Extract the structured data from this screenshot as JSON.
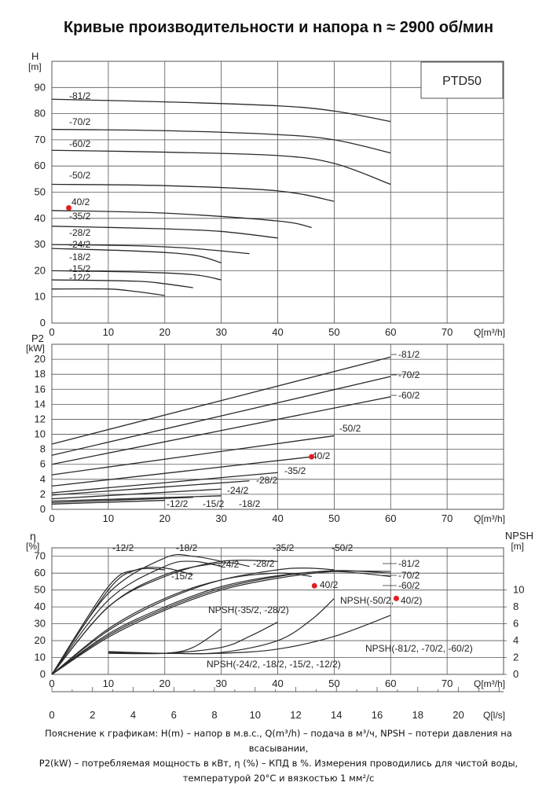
{
  "title": "Кривые производительности и напора n ≈ 2900 об/мин",
  "note": {
    "line1": "Пояснение к графикам: H(m) – напор в м.в.с., Q(m³/h) – подача в м³/ч, NPSH – потери давления на всасывании,",
    "line2": "P2(kW) – потребляемая мощность в кВт, η (%) – КПД в %. Измерения проводились для чистой воды,",
    "line3": "температурой 20°C и вязкостью 1 мм²/с"
  },
  "colors": {
    "line": "#2a2a2a",
    "grid": "#555555",
    "highlight": "#e02020"
  },
  "chart_data": [
    {
      "type": "line",
      "label_box": "PTD50",
      "ylabel": "H",
      "yunit": "[m]",
      "xlabel": "Q[m³/h]",
      "xlim": [
        0,
        80
      ],
      "ylim": [
        0,
        100
      ],
      "xticks": [
        0,
        10,
        20,
        30,
        40,
        50,
        60,
        70
      ],
      "yticks": [
        0,
        10,
        20,
        30,
        40,
        50,
        60,
        70,
        80,
        90
      ],
      "series": [
        {
          "name": "-81/2",
          "x": [
            0,
            20,
            40,
            50,
            60
          ],
          "y": [
            85.5,
            84.5,
            83,
            81,
            77
          ]
        },
        {
          "name": "-70/2",
          "x": [
            0,
            20,
            40,
            50,
            60
          ],
          "y": [
            74,
            73.5,
            72,
            70,
            65
          ]
        },
        {
          "name": "-60/2",
          "x": [
            0,
            20,
            40,
            50,
            60
          ],
          "y": [
            66,
            65.3,
            64,
            61,
            53
          ]
        },
        {
          "name": "-50/2",
          "x": [
            0,
            20,
            40,
            50
          ],
          "y": [
            53,
            52.5,
            50.5,
            46.5
          ]
        },
        {
          "name": "-40/2",
          "x": [
            0,
            20,
            40,
            46
          ],
          "y": [
            43,
            42,
            39,
            36.5
          ]
        },
        {
          "name": "-35/2",
          "x": [
            0,
            20,
            30,
            40
          ],
          "y": [
            37,
            36,
            35,
            32.5
          ]
        },
        {
          "name": "-28/2",
          "x": [
            0,
            15,
            25,
            35
          ],
          "y": [
            30,
            29.5,
            28.5,
            26.5
          ]
        },
        {
          "name": "-24/2",
          "x": [
            0,
            15,
            25,
            30
          ],
          "y": [
            28.5,
            27.5,
            26,
            23
          ]
        },
        {
          "name": "-18/2",
          "x": [
            0,
            15,
            25,
            30
          ],
          "y": [
            20,
            19.5,
            18.5,
            16.5
          ]
        },
        {
          "name": "-15/2",
          "x": [
            0,
            15,
            20,
            25
          ],
          "y": [
            16.5,
            16,
            15,
            13.5
          ]
        },
        {
          "name": "-12/2",
          "x": [
            0,
            10,
            15,
            20
          ],
          "y": [
            13,
            13,
            12,
            10.5
          ]
        }
      ],
      "marker": {
        "x": 3,
        "y": 44
      },
      "highlight": "-40/2"
    },
    {
      "type": "line",
      "ylabel": "P2",
      "yunit": "[kW]",
      "xlabel": "Q[m³/h]",
      "xlim": [
        0,
        80
      ],
      "ylim": [
        0,
        22
      ],
      "xticks": [
        0,
        10,
        20,
        30,
        40,
        50,
        60,
        70
      ],
      "yticks": [
        0,
        2,
        4,
        6,
        8,
        10,
        12,
        14,
        16,
        18,
        20
      ],
      "series": [
        {
          "name": "-81/2",
          "x": [
            0,
            60
          ],
          "y": [
            8.7,
            20.3
          ]
        },
        {
          "name": "-70/2",
          "x": [
            0,
            60
          ],
          "y": [
            7.2,
            17.7
          ]
        },
        {
          "name": "-60/2",
          "x": [
            0,
            60
          ],
          "y": [
            6.0,
            15.0
          ]
        },
        {
          "name": "-50/2",
          "x": [
            0,
            50
          ],
          "y": [
            4.6,
            9.8
          ]
        },
        {
          "name": "-40/2",
          "x": [
            0,
            46
          ],
          "y": [
            3.1,
            7.0
          ]
        },
        {
          "name": "-35/2",
          "x": [
            0,
            40
          ],
          "y": [
            2.2,
            4.9
          ]
        },
        {
          "name": "-28/2",
          "x": [
            0,
            35
          ],
          "y": [
            1.9,
            3.8
          ]
        },
        {
          "name": "-24/2",
          "x": [
            0,
            30
          ],
          "y": [
            1.4,
            2.7
          ]
        },
        {
          "name": "-18/2",
          "x": [
            0,
            30
          ],
          "y": [
            1.1,
            1.8
          ]
        },
        {
          "name": "-15/2",
          "x": [
            0,
            25
          ],
          "y": [
            0.9,
            1.6
          ]
        },
        {
          "name": "-12/2",
          "x": [
            0,
            20
          ],
          "y": [
            0.7,
            1.2
          ]
        }
      ],
      "marker": {
        "x": 46,
        "y": 7.0
      },
      "highlight": "-40/2"
    },
    {
      "type": "line",
      "ylabel": "η",
      "yunit": "[%]",
      "y2label": "NPSH",
      "y2unit": "[m]",
      "xlabel": "Q[m³/h]",
      "x2label": "Q[l/s]",
      "xlim": [
        0,
        80
      ],
      "ylim": [
        0,
        75
      ],
      "y2lim": [
        0,
        15
      ],
      "xticks": [
        0,
        10,
        20,
        30,
        40,
        50,
        60,
        70
      ],
      "yticks": [
        0,
        10,
        20,
        30,
        40,
        50,
        60,
        70
      ],
      "y2ticks": [
        0,
        2,
        4,
        6,
        8,
        10
      ],
      "x2ticks": [
        0,
        2,
        4,
        6,
        8,
        10,
        12,
        14,
        16,
        18,
        20
      ],
      "efficiency_series": [
        {
          "name": "-81/2",
          "x": [
            0,
            10,
            20,
            30,
            40,
            50,
            60
          ],
          "y": [
            0,
            22,
            38,
            50,
            57,
            61,
            61
          ]
        },
        {
          "name": "-70/2",
          "x": [
            0,
            10,
            20,
            30,
            40,
            50,
            60
          ],
          "y": [
            0,
            23,
            39,
            51,
            58,
            61.5,
            60
          ]
        },
        {
          "name": "-60/2",
          "x": [
            0,
            10,
            20,
            30,
            40,
            50,
            60
          ],
          "y": [
            0,
            24,
            40,
            52,
            58.5,
            61,
            58
          ]
        },
        {
          "name": "-50/2",
          "x": [
            0,
            10,
            20,
            30,
            40,
            45,
            50
          ],
          "y": [
            0,
            26,
            44,
            56,
            62,
            63,
            62
          ]
        },
        {
          "name": "-40/2",
          "x": [
            0,
            10,
            20,
            30,
            40,
            46
          ],
          "y": [
            0,
            27,
            45,
            56,
            60,
            58
          ]
        },
        {
          "name": "-35/2",
          "x": [
            0,
            10,
            20,
            30,
            40
          ],
          "y": [
            0,
            40,
            58,
            67,
            67
          ]
        },
        {
          "name": "-28/2",
          "x": [
            0,
            10,
            20,
            30,
            35
          ],
          "y": [
            0,
            40,
            59,
            66,
            64
          ]
        },
        {
          "name": "-24/2",
          "x": [
            0,
            10,
            20,
            25,
            30
          ],
          "y": [
            0,
            44,
            64,
            67,
            64
          ]
        },
        {
          "name": "-18/2",
          "x": [
            0,
            10,
            20,
            25,
            30
          ],
          "y": [
            0,
            48,
            69,
            70,
            67
          ]
        },
        {
          "name": "-15/2",
          "x": [
            0,
            10,
            15,
            20,
            25
          ],
          "y": [
            0,
            50,
            62,
            63,
            59
          ]
        },
        {
          "name": "-12/2",
          "x": [
            0,
            10,
            15,
            20
          ],
          "y": [
            0,
            52,
            62,
            62
          ]
        }
      ],
      "npsh_series": [
        {
          "name": "NPSH(-81/2, -70/2, -60/2)",
          "x": [
            10,
            20,
            30,
            40,
            50,
            60
          ],
          "y": [
            2.7,
            2.5,
            2.5,
            3,
            4.5,
            7
          ]
        },
        {
          "name": "NPSH(-50/2, -40/2)",
          "x": [
            10,
            20,
            30,
            40,
            46,
            50
          ],
          "y": [
            2.6,
            2.5,
            2.6,
            4,
            6.5,
            9
          ]
        },
        {
          "name": "NPSH(-35/2, -28/2)",
          "x": [
            10,
            20,
            30,
            35,
            40
          ],
          "y": [
            2.6,
            2.5,
            3.2,
            4.5,
            6.2
          ]
        },
        {
          "name": "NPSH(-24/2, -18/2, -15/2, -12/2)",
          "x": [
            10,
            20,
            25,
            30
          ],
          "y": [
            2.5,
            2.5,
            3.2,
            5.4
          ]
        }
      ],
      "marker": {
        "x": 46.5,
        "y": 52.5
      },
      "marker2": {
        "x": 61,
        "y": 45
      },
      "labels": {
        "npsh_81_70_60": "NPSH(-81/2, -70/2, -60/2)",
        "npsh_50_40": "NPSH(-50/2,",
        "npsh_50_40_end": "40/2)",
        "npsh_35_28": "NPSH(-35/2, -28/2)",
        "npsh_24_18": "NPSH(-24/2, -18/2, -15/2, -12/2)"
      }
    }
  ]
}
